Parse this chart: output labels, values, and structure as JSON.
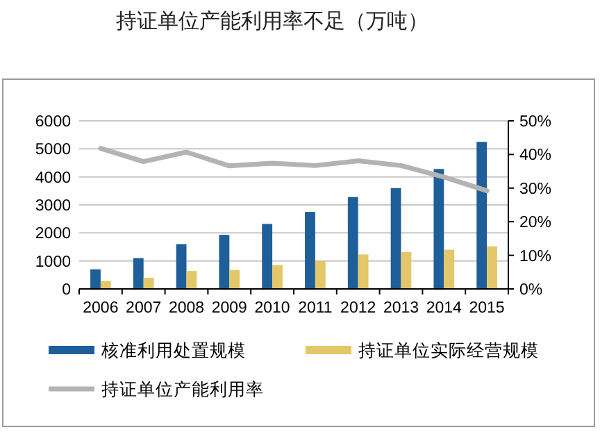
{
  "chart_data": {
    "type": "bar",
    "title": "持证单位产能利用率不足（万吨）",
    "categories": [
      "2006",
      "2007",
      "2008",
      "2009",
      "2010",
      "2011",
      "2012",
      "2013",
      "2014",
      "2015"
    ],
    "series": [
      {
        "name": "核准利用处置规模",
        "color": "#1f5f99",
        "values": [
          700,
          1100,
          1600,
          1930,
          2320,
          2750,
          3280,
          3600,
          4280,
          5250
        ]
      },
      {
        "name": "持证单位实际经营规模",
        "color": "#e3c76a",
        "values": [
          280,
          400,
          640,
          680,
          850,
          1000,
          1230,
          1320,
          1400,
          1520
        ]
      },
      {
        "name": "持证单位产能利用率",
        "type": "line",
        "axis": "y2",
        "color": "#b3b3b3",
        "values": [
          41.8,
          37.9,
          40.7,
          36.6,
          37.4,
          36.7,
          38.1,
          36.7,
          33.3,
          29.2
        ]
      }
    ],
    "ylim": [
      0,
      6000
    ],
    "yticks": [
      0,
      1000,
      2000,
      3000,
      4000,
      5000,
      6000
    ],
    "y2lim": [
      0,
      50
    ],
    "y2ticks": [
      {
        "value": 0,
        "label": "0%"
      },
      {
        "value": 10,
        "label": "10%"
      },
      {
        "value": 20,
        "label": "20%"
      },
      {
        "value": 30,
        "label": "30%"
      },
      {
        "value": 40,
        "label": "40%"
      },
      {
        "value": 50,
        "label": "50%"
      }
    ],
    "grid": "y",
    "legend": "bottom"
  }
}
